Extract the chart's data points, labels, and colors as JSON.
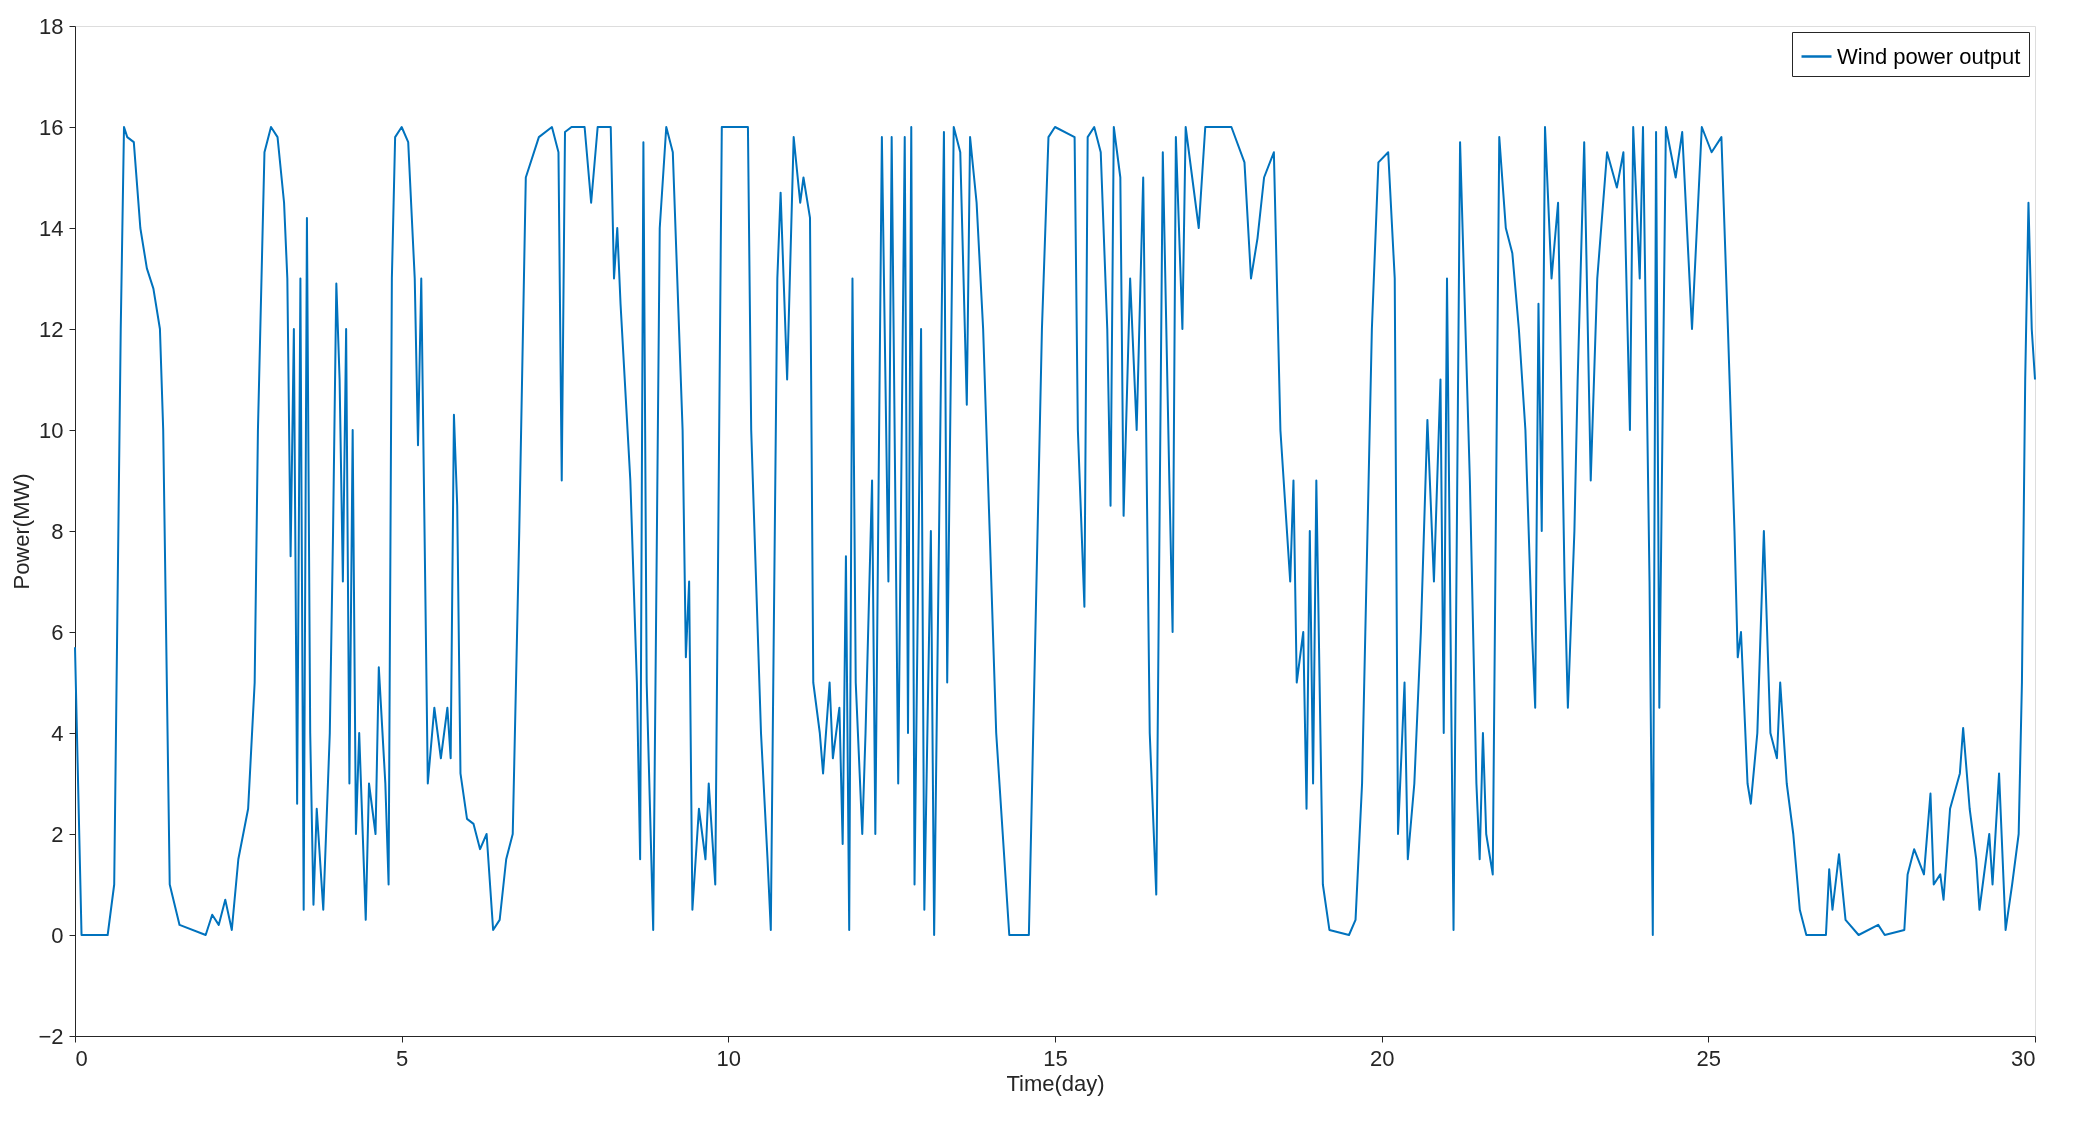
{
  "chart_data": {
    "type": "line",
    "xlabel": "Time(day)",
    "ylabel": "Power(MW)",
    "xlim": [
      0,
      30
    ],
    "xticks": [
      0,
      5,
      10,
      15,
      20,
      25,
      30
    ],
    "ylim": [
      -2,
      18
    ],
    "yticks": [
      -2,
      0,
      2,
      4,
      6,
      8,
      10,
      12,
      14,
      16,
      18
    ],
    "grid": false,
    "legend": "top right",
    "marker": "none",
    "line_style": "solid",
    "series": [
      {
        "name": "Wind power output",
        "color": "#0072bd",
        "x": [
          0,
          0.1,
          0.5,
          0.6,
          0.7,
          0.75,
          0.8,
          0.9,
          1.0,
          1.1,
          1.2,
          1.3,
          1.35,
          1.45,
          1.6,
          2.0,
          2.1,
          2.2,
          2.3,
          2.4,
          2.5,
          2.65,
          2.75,
          2.8,
          2.9,
          3.0,
          3.1,
          3.2,
          3.25,
          3.3,
          3.35,
          3.4,
          3.45,
          3.5,
          3.55,
          3.6,
          3.65,
          3.7,
          3.8,
          3.9,
          3.95,
          4.0,
          4.05,
          4.1,
          4.15,
          4.2,
          4.25,
          4.3,
          4.35,
          4.45,
          4.5,
          4.6,
          4.65,
          4.75,
          4.8,
          4.85,
          4.9,
          5.0,
          5.1,
          5.2,
          5.25,
          5.3,
          5.4,
          5.5,
          5.6,
          5.7,
          5.75,
          5.8,
          5.85,
          5.9,
          6.0,
          6.1,
          6.2,
          6.3,
          6.4,
          6.5,
          6.6,
          6.7,
          6.8,
          6.9,
          7.1,
          7.3,
          7.4,
          7.45,
          7.5,
          7.6,
          7.8,
          7.9,
          8.0,
          8.2,
          8.25,
          8.3,
          8.35,
          8.5,
          8.6,
          8.65,
          8.7,
          8.75,
          8.85,
          8.95,
          9.05,
          9.15,
          9.3,
          9.35,
          9.4,
          9.45,
          9.55,
          9.65,
          9.7,
          9.8,
          9.9,
          10.0,
          10.3,
          10.35,
          10.5,
          10.6,
          10.65,
          10.75,
          10.8,
          10.9,
          11.0,
          11.1,
          11.15,
          11.25,
          11.3,
          11.4,
          11.45,
          11.55,
          11.6,
          11.7,
          11.75,
          11.8,
          11.85,
          11.9,
          11.95,
          12.05,
          12.1,
          12.2,
          12.25,
          12.35,
          12.45,
          12.5,
          12.6,
          12.7,
          12.75,
          12.8,
          12.85,
          12.95,
          13.0,
          13.1,
          13.15,
          13.3,
          13.35,
          13.45,
          13.55,
          13.65,
          13.7,
          13.8,
          13.9,
          14.0,
          14.1,
          14.2,
          14.3,
          14.6,
          14.8,
          14.9,
          15.0,
          15.3,
          15.35,
          15.45,
          15.5,
          15.6,
          15.7,
          15.8,
          15.85,
          15.9,
          16.0,
          16.05,
          16.15,
          16.25,
          16.35,
          16.45,
          16.55,
          16.65,
          16.75,
          16.8,
          16.85,
          16.95,
          17.0,
          17.2,
          17.3,
          17.5,
          17.7,
          17.9,
          18.0,
          18.1,
          18.2,
          18.35,
          18.45,
          18.6,
          18.65,
          18.7,
          18.8,
          18.85,
          18.9,
          18.95,
          19.0,
          19.1,
          19.2,
          19.5,
          19.6,
          19.7,
          19.85,
          19.95,
          20.1,
          20.2,
          20.25,
          20.35,
          20.4,
          20.5,
          20.6,
          20.7,
          20.8,
          20.9,
          20.95,
          21.0,
          21.1,
          21.2,
          21.35,
          21.45,
          21.5,
          21.55,
          21.6,
          21.7,
          21.8,
          21.9,
          22.0,
          22.1,
          22.2,
          22.3,
          22.35,
          22.4,
          22.45,
          22.5,
          22.6,
          22.7,
          22.8,
          22.85,
          22.95,
          23.0,
          23.1,
          23.2,
          23.3,
          23.45,
          23.6,
          23.7,
          23.8,
          23.85,
          23.95,
          24.0,
          24.1,
          24.15,
          24.2,
          24.25,
          24.35,
          24.5,
          24.6,
          24.75,
          24.9,
          25.05,
          25.2,
          25.3,
          25.4,
          25.45,
          25.5,
          25.6,
          25.65,
          25.75,
          25.85,
          25.9,
          25.95,
          26.05,
          26.1,
          26.2,
          26.3,
          26.4,
          26.5,
          26.8,
          26.85,
          26.9,
          27.0,
          27.1,
          27.3,
          27.6,
          27.7,
          28.0,
          28.05,
          28.15,
          28.3,
          28.4,
          28.45,
          28.55,
          28.6,
          28.7,
          28.85,
          28.9,
          29.0,
          29.1,
          29.15,
          29.3,
          29.35,
          29.45,
          29.55,
          29.65,
          29.75,
          29.8,
          29.85,
          29.9,
          29.95,
          30.0
        ],
        "values": [
          5.7,
          0,
          0,
          1,
          12,
          16,
          15.8,
          15.7,
          14,
          13.2,
          12.8,
          12,
          10,
          1,
          0.2,
          0,
          0.4,
          0.2,
          0.7,
          0.1,
          1.5,
          2.5,
          5,
          10,
          15.5,
          16,
          15.8,
          14.5,
          13,
          7.5,
          12,
          2.6,
          13,
          0.5,
          14.2,
          4,
          0.6,
          2.5,
          0.5,
          4,
          8,
          12.9,
          11,
          7,
          12,
          3,
          10,
          2,
          4,
          0.3,
          3,
          2,
          5.3,
          3,
          1,
          13,
          15.8,
          16,
          15.7,
          13,
          9.7,
          13,
          3,
          4.5,
          3.5,
          4.5,
          3.5,
          10.3,
          8.5,
          3.2,
          2.3,
          2.2,
          1.7,
          2,
          0.1,
          0.3,
          1.5,
          2,
          8,
          15,
          15.8,
          16,
          15.5,
          9,
          15.9,
          16,
          16,
          14.5,
          16,
          16,
          13,
          14,
          12.5,
          9,
          5,
          1.5,
          15.7,
          5,
          0.1,
          14,
          16,
          15.5,
          10,
          5.5,
          7,
          0.5,
          2.5,
          1.5,
          3,
          1,
          16,
          16,
          16,
          10,
          4,
          1.5,
          0.1,
          13,
          14.7,
          11,
          15.8,
          14.5,
          15,
          14.2,
          5,
          4,
          3.2,
          5,
          3.5,
          4.5,
          1.8,
          7.5,
          0.1,
          13,
          5,
          2,
          4,
          9,
          2,
          15.8,
          7,
          15.8,
          3,
          15.8,
          4,
          16,
          1,
          12,
          0.5,
          8,
          0,
          15.9,
          5,
          16,
          15.5,
          10.5,
          15.8,
          14.5,
          12,
          8,
          4,
          2,
          0,
          0,
          12,
          15.8,
          16,
          15.8,
          10,
          6.5,
          15.8,
          16,
          15.5,
          12,
          8.5,
          16,
          15,
          8.3,
          13,
          10,
          15,
          4,
          0.8,
          15.5,
          9,
          6,
          15.8,
          12,
          16,
          14,
          16,
          16,
          16,
          15.3,
          13,
          13.8,
          15,
          15.5,
          10,
          7,
          9,
          5,
          6,
          2.5,
          8,
          3,
          9,
          1,
          0.1,
          0,
          0.3,
          3,
          12,
          15.3,
          15.5,
          13,
          2,
          5,
          1.5,
          3,
          6,
          10.2,
          7,
          11,
          4,
          13,
          0.1,
          15.7,
          9,
          3,
          1.5,
          4,
          2,
          1.2,
          15.8,
          14,
          13.5,
          12,
          10,
          6,
          4.5,
          12.5,
          8,
          16,
          13,
          14.5,
          7,
          4.5,
          8,
          11,
          15.7,
          9,
          13,
          15.5,
          14.8,
          15.5,
          10,
          16,
          13,
          16,
          7,
          0,
          15.9,
          4.5,
          16,
          15,
          15.9,
          12,
          16,
          15.5,
          15.8,
          12,
          8,
          5.5,
          6,
          3,
          2.6,
          4,
          8,
          6,
          4,
          3.5,
          5,
          3,
          2,
          0.5,
          0,
          0,
          1.3,
          0.5,
          1.6,
          0.3,
          0,
          0.2,
          0,
          0.1,
          1.2,
          1.7,
          1.2,
          2.8,
          1,
          1.2,
          0.7,
          2.5,
          3.2,
          4.1,
          2.5,
          1.5,
          0.5,
          2,
          1,
          3.2,
          0.1,
          1,
          2,
          5,
          11,
          14.5,
          12,
          11
        ]
      }
    ]
  }
}
